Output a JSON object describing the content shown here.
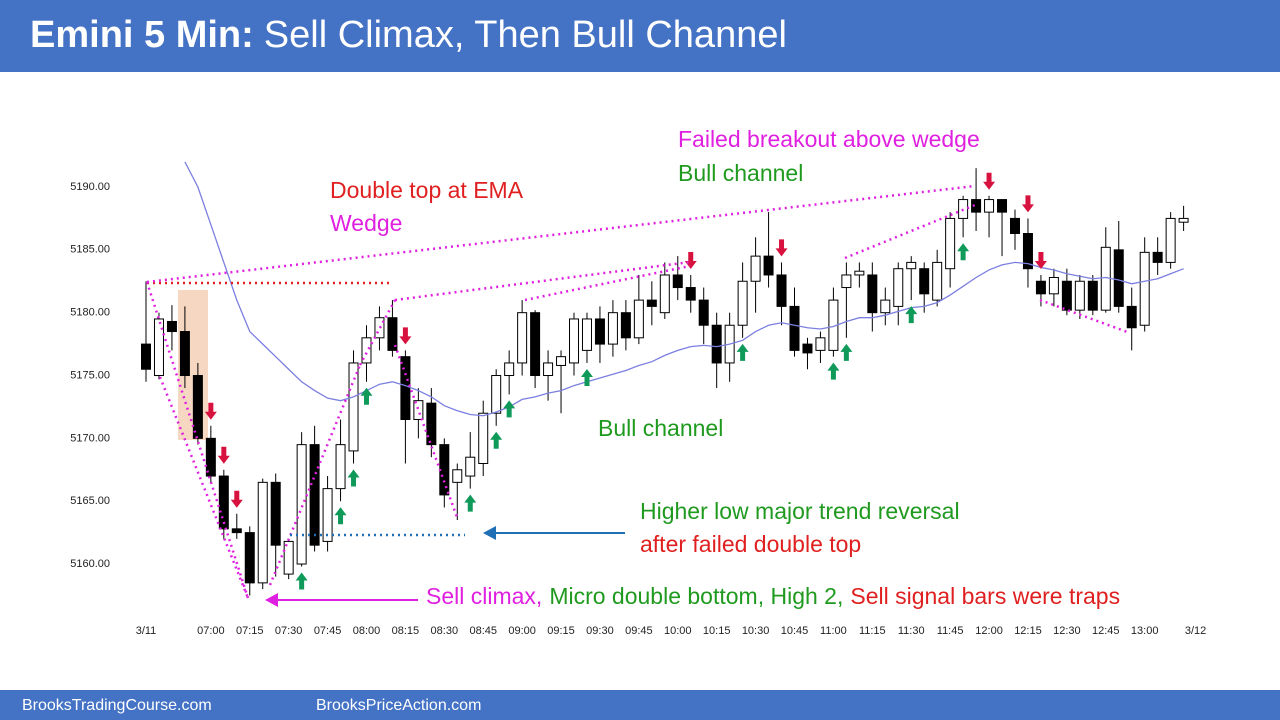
{
  "header": {
    "title_bold": "Emini 5 Min:",
    "title_rest": "Sell Climax, Then Bull Channel"
  },
  "chart_data": {
    "type": "candlestick",
    "categories": [
      "3/11",
      null,
      null,
      null,
      null,
      "07:00",
      null,
      null,
      "07:15",
      null,
      null,
      "07:30",
      null,
      null,
      "07:45",
      null,
      null,
      "08:00",
      null,
      null,
      "08:15",
      null,
      null,
      "08:30",
      null,
      null,
      "08:45",
      null,
      null,
      "09:00",
      null,
      null,
      "09:15",
      null,
      null,
      "09:30",
      null,
      null,
      "09:45",
      null,
      null,
      "10:00",
      null,
      null,
      "10:15",
      null,
      null,
      "10:30",
      null,
      null,
      "10:45",
      null,
      null,
      "11:00",
      null,
      null,
      "11:15",
      null,
      null,
      "11:30",
      null,
      null,
      "11:45",
      null,
      null,
      "12:00",
      null,
      null,
      "12:15",
      null,
      null,
      "12:30",
      null,
      null,
      "12:45",
      null,
      null,
      "13:00",
      null,
      null,
      "3/12"
    ],
    "open": [
      5177.5,
      5175,
      5179.3,
      5178.5,
      5175,
      5170,
      5167,
      5162.8,
      5162.5,
      5158.5,
      5166.5,
      5159.2,
      5160,
      5169.5,
      5161.8,
      5166,
      5169,
      5176,
      5178,
      5179.6,
      5176.5,
      5171.5,
      5172.8,
      5169.5,
      5166.5,
      5167,
      5168,
      5172,
      5175,
      5176,
      5180,
      5175,
      5175.8,
      5176,
      5177,
      5179.5,
      5177.5,
      5180,
      5178,
      5181,
      5180,
      5183,
      5182,
      5181,
      5179,
      5176,
      5179,
      5182.5,
      5184.5,
      5183,
      5180.5,
      5177.5,
      5177,
      5177,
      5182,
      5183,
      5183,
      5180,
      5180.5,
      5183.5,
      5183.5,
      5181,
      5183.5,
      5187.5,
      5189,
      5188,
      5189,
      5187.5,
      5186.3,
      5182.5,
      5181.5,
      5182.5,
      5180.2,
      5182.5,
      5180.2,
      5185,
      5180.5,
      5179,
      5184.8,
      5184,
      5187.2
    ],
    "high": [
      5182.5,
      5180,
      5180.6,
      5180.5,
      5176,
      5171,
      5167.5,
      5164,
      5163,
      5166.8,
      5167.2,
      5162,
      5170.5,
      5171,
      5167,
      5171.5,
      5177,
      5179,
      5180.5,
      5181,
      5177,
      5174,
      5174,
      5170,
      5168,
      5170.5,
      5173,
      5175.5,
      5177,
      5181,
      5180.2,
      5177,
      5177,
      5180,
      5180,
      5180.5,
      5181,
      5181,
      5183,
      5182.5,
      5184,
      5184.5,
      5183,
      5182,
      5180,
      5180,
      5184,
      5186,
      5188,
      5184,
      5182,
      5178,
      5178.5,
      5182,
      5184,
      5184,
      5184,
      5182,
      5184,
      5184.5,
      5184,
      5185,
      5188,
      5189.3,
      5191.5,
      5189.3,
      5189,
      5188.2,
      5187.5,
      5183,
      5183.5,
      5183.5,
      5183,
      5183,
      5186.8,
      5187.3,
      5182,
      5186,
      5186,
      5188,
      5188.5
    ],
    "low": [
      5174.5,
      5174.7,
      5177,
      5174,
      5169.5,
      5166.5,
      5162,
      5162,
      5157.5,
      5158,
      5159,
      5158.8,
      5159.8,
      5161,
      5161,
      5165,
      5168,
      5174.5,
      5177,
      5176.5,
      5168,
      5170,
      5168.5,
      5164.5,
      5163.5,
      5166,
      5167,
      5171,
      5173.5,
      5175,
      5174,
      5173,
      5172,
      5175,
      5176,
      5176,
      5176.5,
      5177,
      5177.5,
      5179,
      5179.5,
      5181,
      5180,
      5177.5,
      5174,
      5174.5,
      5178,
      5180,
      5182,
      5179,
      5176.5,
      5175.5,
      5176,
      5176.5,
      5178,
      5182,
      5178.5,
      5179,
      5179,
      5181,
      5180,
      5180.5,
      5182,
      5186,
      5186.5,
      5186,
      5184.5,
      5185,
      5182,
      5180.5,
      5180.5,
      5179.8,
      5179.5,
      5179.8,
      5180,
      5180,
      5177,
      5178.5,
      5183,
      5183.5,
      5186.5
    ],
    "close": [
      5175.5,
      5179.5,
      5178.5,
      5175,
      5170,
      5167,
      5162.8,
      5162.5,
      5158.5,
      5166.5,
      5161.5,
      5161.8,
      5169.5,
      5161.5,
      5166,
      5169.5,
      5176,
      5178,
      5179.6,
      5177,
      5171.5,
      5173,
      5169.5,
      5165.5,
      5167.5,
      5168.5,
      5172,
      5175,
      5176,
      5180,
      5175,
      5176,
      5176.5,
      5179.5,
      5179.5,
      5177.5,
      5180,
      5178,
      5181,
      5180.5,
      5183,
      5182,
      5181,
      5179,
      5176,
      5179,
      5182.5,
      5184.5,
      5183,
      5180.5,
      5177,
      5176.8,
      5178,
      5181,
      5183,
      5183.3,
      5180,
      5181,
      5183.5,
      5184,
      5181.5,
      5184,
      5187.5,
      5189,
      5188,
      5189,
      5188,
      5186.3,
      5183.5,
      5181.5,
      5182.8,
      5180.2,
      5182.5,
      5180.2,
      5185.2,
      5180.5,
      5178.8,
      5184.8,
      5184,
      5187.5,
      5187.5
    ],
    "ema": {
      "color": "#7b7fe0",
      "values": [
        null,
        null,
        null,
        5192,
        5190,
        5187,
        5184,
        5181,
        5178.5,
        5177.5,
        5176.5,
        5175.5,
        5174.5,
        5173.8,
        5173.2,
        5173,
        5173.3,
        5173.8,
        5174.3,
        5174.5,
        5174.2,
        5173.8,
        5173.3,
        5172.6,
        5172.2,
        5171.9,
        5171.8,
        5172.1,
        5172.5,
        5173.1,
        5173.3,
        5173.6,
        5173.8,
        5174.2,
        5174.5,
        5174.8,
        5175.1,
        5175.4,
        5175.8,
        5176.1,
        5176.6,
        5177,
        5177.3,
        5177.4,
        5177.3,
        5177.5,
        5177.8,
        5178.5,
        5179,
        5179.2,
        5179,
        5178.8,
        5178.7,
        5178.9,
        5179.3,
        5179.6,
        5179.6,
        5179.8,
        5180.1,
        5180.4,
        5180.5,
        5180.8,
        5181.4,
        5182.1,
        5182.8,
        5183.4,
        5183.8,
        5184,
        5183.9,
        5183.6,
        5183.4,
        5183.1,
        5182.9,
        5182.7,
        5182.8,
        5182.6,
        5182.3,
        5182.5,
        5182.7,
        5183.1,
        5183.5
      ]
    },
    "ylim": [
      5156,
      5193
    ],
    "yticks": [
      {
        "value": 5160,
        "label": "5160.00"
      },
      {
        "value": 5165,
        "label": "5165.00"
      },
      {
        "value": 5170,
        "label": "5170.00"
      },
      {
        "value": 5175,
        "label": "5175.00"
      },
      {
        "value": 5180,
        "label": "5180.00"
      },
      {
        "value": 5185,
        "label": "5185.00"
      },
      {
        "value": 5190,
        "label": "5190.00"
      }
    ],
    "annotations": {
      "double_top": "Double top at EMA",
      "wedge": "Wedge",
      "failed_breakout": "Failed breakout above wedge",
      "bull_channel_top": "Bull channel",
      "bull_channel_mid": "Bull channel",
      "higher_low": "Higher low major trend reversal",
      "failed_double_top": "after failed double top",
      "sell_climax": "Sell climax,",
      "micro_double_bottom": "Micro double bottom, High 2,",
      "traps": "Sell signal bars were traps"
    }
  },
  "footer": {
    "left": "BrooksTradingCourse.com",
    "right": "BrooksPriceAction.com"
  }
}
